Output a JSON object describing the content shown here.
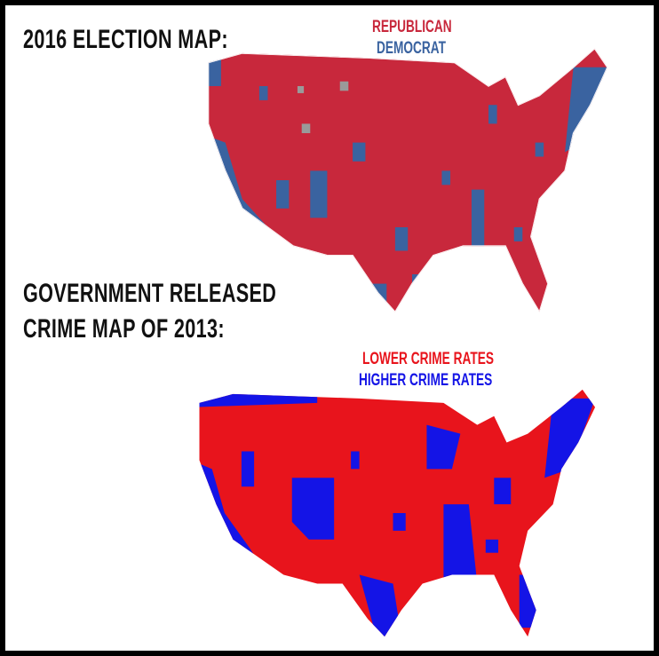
{
  "map1": {
    "title": "2016 ELECTION MAP:",
    "legend": [
      {
        "label": "REPUBLICAN",
        "color": "#c8283c"
      },
      {
        "label": "DEMOCRAT",
        "color": "#3a63a0"
      }
    ],
    "no_data_color": "#9a9a9a"
  },
  "map2": {
    "title_line1": "GOVERNMENT RELEASED",
    "title_line2": "CRIME MAP OF 2013:",
    "legend": [
      {
        "label": "LOWER CRIME RATES",
        "color": "#e8141c"
      },
      {
        "label": "HIGHER CRIME RATES",
        "color": "#1414e6"
      }
    ]
  }
}
